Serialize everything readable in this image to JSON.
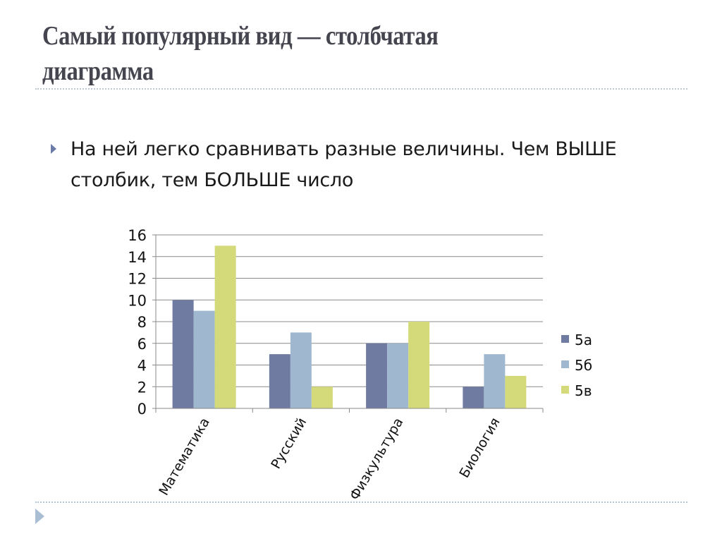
{
  "slide": {
    "title": "Самый популярный вид — столбчатая диаграмма",
    "title_line1": "Самый популярный вид — столбчатая",
    "title_line2": "диаграмма",
    "bullet_line1": "На ней легко сравнивать разные величины. Чем ВЫШЕ",
    "bullet_line2": "столбик, тем БОЛЬШЕ число",
    "bullet_icon": "triangle-bullet-icon"
  },
  "colors": {
    "title": "#454550",
    "divider": "#b9c8d6",
    "bullet": "#6c7aa8",
    "series_5a": "#6f7ba0",
    "series_5b": "#9fb8cf",
    "series_5v": "#d4da7a"
  },
  "chart_data": {
    "type": "bar",
    "title": "",
    "xlabel": "",
    "ylabel": "",
    "categories": [
      "Математика",
      "Русский",
      "Физкультура",
      "Биология"
    ],
    "series": [
      {
        "name": "5а",
        "color": "#6f7ba0",
        "values": [
          10,
          5,
          6,
          2
        ]
      },
      {
        "name": "5б",
        "color": "#9fb8cf",
        "values": [
          9,
          7,
          6,
          5
        ]
      },
      {
        "name": "5в",
        "color": "#d4da7a",
        "values": [
          15,
          2,
          8,
          3
        ]
      }
    ],
    "yticks": [
      "0",
      "2",
      "4",
      "6",
      "8",
      "10",
      "12",
      "14",
      "16"
    ],
    "ylim": [
      0,
      16
    ],
    "grid": true,
    "legend_position": "right",
    "x_label_rotation": -60
  }
}
